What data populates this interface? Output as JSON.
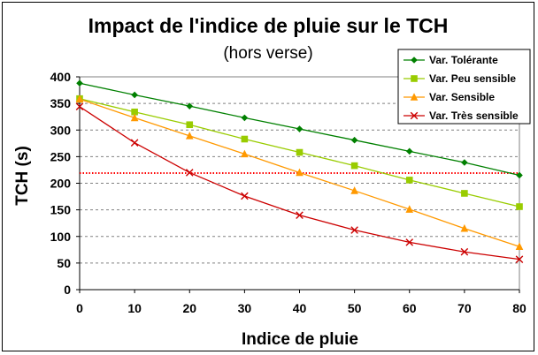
{
  "chart_data": {
    "type": "line",
    "title": "Impact de l'indice de pluie sur le TCH",
    "subtitle": "(hors verse)",
    "xlabel": "Indice de pluie",
    "ylabel": "TCH (s)",
    "x": [
      0,
      10,
      20,
      30,
      40,
      50,
      60,
      70,
      80
    ],
    "xlim": [
      0,
      80
    ],
    "ylim": [
      0,
      400
    ],
    "yticks": [
      0,
      50,
      100,
      150,
      200,
      250,
      300,
      350,
      400
    ],
    "grid": true,
    "legend_position": "top-right",
    "series": [
      {
        "name": "Var. Tolérante",
        "color": "#008000",
        "marker": "diamond",
        "values": [
          388,
          366,
          345,
          323,
          302,
          281,
          260,
          239,
          215
        ]
      },
      {
        "name": "Var. Peu sensible",
        "color": "#99CC00",
        "marker": "square",
        "values": [
          359,
          334,
          310,
          283,
          258,
          233,
          206,
          181,
          156
        ]
      },
      {
        "name": "Var. Sensible",
        "color": "#FF9900",
        "marker": "triangle",
        "values": [
          358,
          323,
          289,
          255,
          220,
          186,
          151,
          115,
          81
        ]
      },
      {
        "name": "Var. Très sensible",
        "color": "#CC0000",
        "marker": "x",
        "values": [
          344,
          276,
          220,
          176,
          140,
          112,
          89,
          71,
          57
        ]
      }
    ],
    "reference_line": {
      "y": 219,
      "color": "#FF0000",
      "style": "dotted"
    }
  }
}
